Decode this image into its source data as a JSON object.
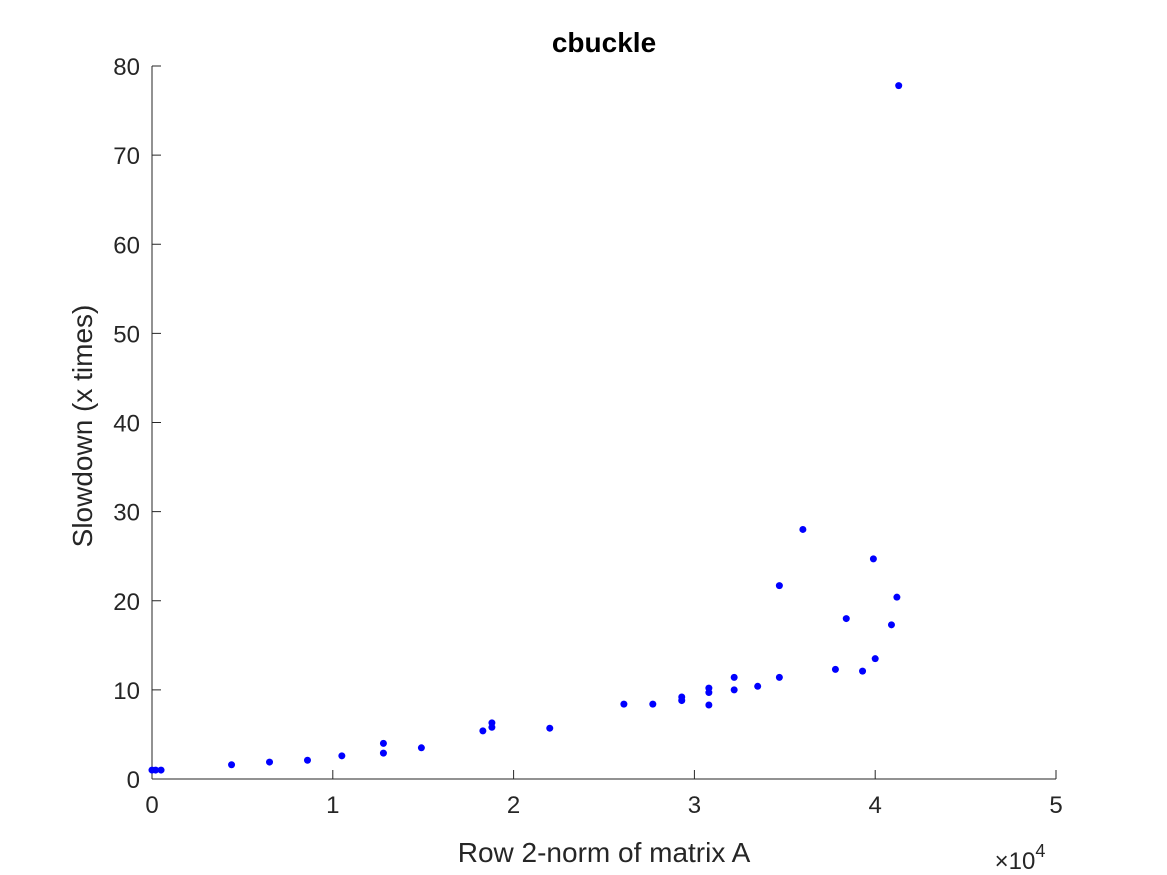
{
  "chart_data": {
    "type": "scatter",
    "title": "cbuckle",
    "xlabel": "Row 2-norm of matrix A",
    "ylabel": "Slowdown (x times)",
    "x_exponent": {
      "base": "10",
      "power": "4",
      "prefix": "×"
    },
    "xlim": [
      0,
      50000
    ],
    "ylim": [
      0,
      80
    ],
    "x_ticks": [
      0,
      10000,
      20000,
      30000,
      40000,
      50000
    ],
    "x_tick_labels": [
      "0",
      "1",
      "2",
      "3",
      "4",
      "5"
    ],
    "y_ticks": [
      0,
      10,
      20,
      30,
      40,
      50,
      60,
      70,
      80
    ],
    "y_tick_labels": [
      "0",
      "10",
      "20",
      "30",
      "40",
      "50",
      "60",
      "70",
      "80"
    ],
    "grid": false,
    "marker_color": "#0000ff",
    "points": [
      {
        "x": 0,
        "y": 1.0
      },
      {
        "x": 200,
        "y": 1.0
      },
      {
        "x": 500,
        "y": 1.0
      },
      {
        "x": 4400,
        "y": 1.6
      },
      {
        "x": 6500,
        "y": 1.9
      },
      {
        "x": 8600,
        "y": 2.1
      },
      {
        "x": 10500,
        "y": 2.6
      },
      {
        "x": 12800,
        "y": 2.9
      },
      {
        "x": 12800,
        "y": 4.0
      },
      {
        "x": 14900,
        "y": 3.5
      },
      {
        "x": 18300,
        "y": 5.4
      },
      {
        "x": 18800,
        "y": 5.8
      },
      {
        "x": 18800,
        "y": 6.3
      },
      {
        "x": 22000,
        "y": 5.7
      },
      {
        "x": 26100,
        "y": 8.4
      },
      {
        "x": 27700,
        "y": 8.4
      },
      {
        "x": 29300,
        "y": 8.8
      },
      {
        "x": 29300,
        "y": 9.2
      },
      {
        "x": 30800,
        "y": 8.3
      },
      {
        "x": 30800,
        "y": 9.7
      },
      {
        "x": 30800,
        "y": 10.2
      },
      {
        "x": 32200,
        "y": 10.0
      },
      {
        "x": 32200,
        "y": 11.4
      },
      {
        "x": 33500,
        "y": 10.4
      },
      {
        "x": 34700,
        "y": 11.4
      },
      {
        "x": 34700,
        "y": 21.7
      },
      {
        "x": 36000,
        "y": 28.0
      },
      {
        "x": 37800,
        "y": 12.3
      },
      {
        "x": 38400,
        "y": 18.0
      },
      {
        "x": 39300,
        "y": 12.1
      },
      {
        "x": 39900,
        "y": 24.7
      },
      {
        "x": 40000,
        "y": 13.5
      },
      {
        "x": 40900,
        "y": 17.3
      },
      {
        "x": 41200,
        "y": 20.4
      },
      {
        "x": 41300,
        "y": 77.8
      }
    ]
  }
}
